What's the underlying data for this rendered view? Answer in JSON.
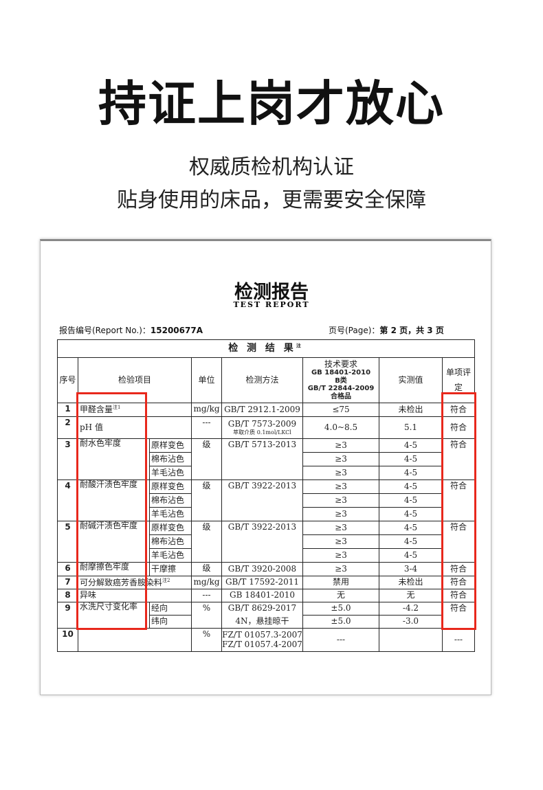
{
  "headline": "持证上岗才放心",
  "subtitle1": "权威质检机构认证",
  "subtitle2": "贴身使用的床品，更需要安全保障",
  "report": {
    "title": "检测报告",
    "title_en": "TEST REPORT",
    "report_no_label": "报告编号(Report No.)：",
    "report_no": "15200677A",
    "page_label": "页号(Page)：",
    "page_text": "第 2 页，共 3 页",
    "results_title": "检 测 结 果",
    "results_note": "注",
    "headers": {
      "no": "序号",
      "item": "检验项目",
      "unit": "单位",
      "method": "检测方法",
      "req_title": "技术要求",
      "req_lines": [
        "GB 18401-2010",
        "B类",
        "GB/T 22844-2009",
        "合格品"
      ],
      "measured": "实测值",
      "verdict": "单项评定"
    },
    "rows": [
      {
        "no": "1",
        "item": "甲醛含量",
        "note": "注1",
        "unit": "mg/kg",
        "method": "GB/T 2912.1-2009",
        "req": [
          "≤75"
        ],
        "measured": [
          "未检出"
        ],
        "verdict": "符合"
      },
      {
        "no": "2",
        "item": "pH 值",
        "unit": "---",
        "method": "GB/T 7573-2009",
        "method_note": "萃取介质 0.1mol/LKCl",
        "req": [
          "4.0~8.5"
        ],
        "measured": [
          "5.1"
        ],
        "verdict": "符合"
      },
      {
        "no": "3",
        "item": "耐水色牢度",
        "subs": [
          "原样变色",
          "棉布沾色",
          "羊毛沾色"
        ],
        "unit": "级",
        "method": "GB/T 5713-2013",
        "req": [
          "≥3",
          "≥3",
          "≥3"
        ],
        "measured": [
          "4-5",
          "4-5",
          "4-5"
        ],
        "verdict": "符合"
      },
      {
        "no": "4",
        "item": "耐酸汗渍色牢度",
        "subs": [
          "原样变色",
          "棉布沾色",
          "羊毛沾色"
        ],
        "unit": "级",
        "method": "GB/T 3922-2013",
        "req": [
          "≥3",
          "≥3",
          "≥3"
        ],
        "measured": [
          "4-5",
          "4-5",
          "4-5"
        ],
        "verdict": "符合"
      },
      {
        "no": "5",
        "item": "耐碱汗渍色牢度",
        "subs": [
          "原样变色",
          "棉布沾色",
          "羊毛沾色"
        ],
        "unit": "级",
        "method": "GB/T 3922-2013",
        "req": [
          "≥3",
          "≥3",
          "≥3"
        ],
        "measured": [
          "4-5",
          "4-5",
          "4-5"
        ],
        "verdict": "符合"
      },
      {
        "no": "6",
        "item": "耐摩擦色牢度",
        "subs": [
          "干摩擦"
        ],
        "unit": "级",
        "method": "GB/T 3920-2008",
        "req": [
          "≥3"
        ],
        "measured": [
          "3-4"
        ],
        "verdict": "符合"
      },
      {
        "no": "7",
        "item": "可分解致癌芳香胺染料",
        "note": "注2",
        "unit": "mg/kg",
        "method": "GB/T 17592-2011",
        "req": [
          "禁用"
        ],
        "measured": [
          "未检出"
        ],
        "verdict": "符合"
      },
      {
        "no": "8",
        "item": "异味",
        "unit": "---",
        "method": "GB 18401-2010",
        "req": [
          "无"
        ],
        "measured": [
          "无"
        ],
        "verdict": "符合"
      },
      {
        "no": "9",
        "item": "水洗尺寸变化率",
        "subs": [
          "经向",
          "纬向"
        ],
        "unit": "%",
        "method_lines": [
          "GB/T 8629-2017",
          "4N，悬挂晾干"
        ],
        "req": [
          "±5.0",
          "±5.0"
        ],
        "measured": [
          "-4.2",
          "-3.0"
        ],
        "verdict": "符合"
      },
      {
        "no": "10",
        "item": "",
        "unit": "%",
        "method": "FZ/T 01057.3-2007\nFZ/T 01057.4-2007",
        "req": [
          "---"
        ],
        "measured": [
          ""
        ],
        "verdict": "---"
      }
    ]
  },
  "highlight_color": "#e8281c"
}
